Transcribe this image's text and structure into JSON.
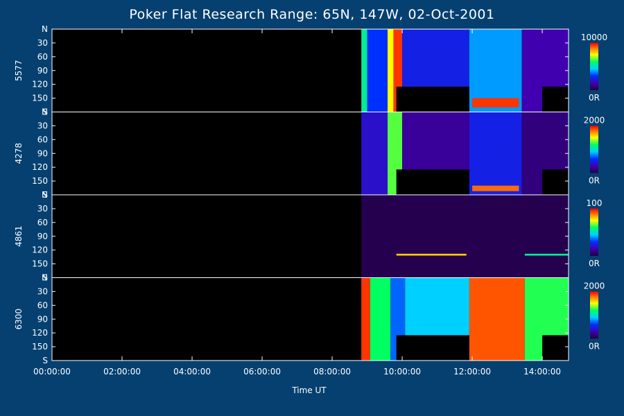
{
  "chart_data": {
    "type": "heatmap",
    "title": "Poker Flat Research Range: 65N, 147W, 02-Oct-2001",
    "xlabel": "Time UT",
    "xlim": [
      "00:00:00",
      "14:45:00"
    ],
    "x_ticks": [
      "00:00:00",
      "02:00:00",
      "04:00:00",
      "06:00:00",
      "08:00:00",
      "10:00:00",
      "12:00:00",
      "14:00:00"
    ],
    "y_ticks": [
      "N",
      "30",
      "60",
      "90",
      "120",
      "150",
      "S"
    ],
    "panels": [
      {
        "name": "5577",
        "colorbar": {
          "max_label": "10000",
          "min_label": "0R"
        },
        "segments": [
          {
            "start": "08:50",
            "end": "09:00",
            "intensity": 0.55
          },
          {
            "start": "09:00",
            "end": "09:35",
            "intensity": 0.3
          },
          {
            "start": "09:35",
            "end": "09:45",
            "intensity": 0.75
          },
          {
            "start": "09:45",
            "end": "10:00",
            "intensity": 0.95
          },
          {
            "start": "10:00",
            "end": "11:55",
            "intensity": 0.25
          },
          {
            "start": "11:55",
            "end": "13:25",
            "intensity": 0.4
          },
          {
            "start": "13:25",
            "end": "14:45",
            "intensity": 0.15
          }
        ],
        "missing": [
          {
            "start": "09:50",
            "end": "11:55",
            "from_deg": 125,
            "to_deg": 180
          },
          {
            "start": "14:00",
            "end": "14:45",
            "from_deg": 125,
            "to_deg": 180
          }
        ],
        "bright_bands": [
          {
            "start": "12:00",
            "end": "13:20",
            "from_deg": 150,
            "to_deg": 170,
            "intensity": 0.95
          }
        ]
      },
      {
        "name": "4278",
        "colorbar": {
          "max_label": "2000",
          "min_label": "0R"
        },
        "segments": [
          {
            "start": "08:50",
            "end": "09:35",
            "intensity": 0.2
          },
          {
            "start": "09:35",
            "end": "10:00",
            "intensity": 0.65
          },
          {
            "start": "10:00",
            "end": "11:55",
            "intensity": 0.12
          },
          {
            "start": "11:55",
            "end": "13:25",
            "intensity": 0.25
          },
          {
            "start": "13:25",
            "end": "14:45",
            "intensity": 0.08
          }
        ],
        "missing": [
          {
            "start": "09:50",
            "end": "11:55",
            "from_deg": 125,
            "to_deg": 180
          },
          {
            "start": "14:00",
            "end": "14:45",
            "from_deg": 125,
            "to_deg": 180
          }
        ],
        "bright_bands": [
          {
            "start": "12:00",
            "end": "13:20",
            "from_deg": 160,
            "to_deg": 172,
            "intensity": 0.9
          }
        ]
      },
      {
        "name": "4861",
        "colorbar": {
          "max_label": "100",
          "min_label": "0R"
        },
        "segments": [
          {
            "start": "08:50",
            "end": "14:45",
            "intensity": 0.02
          }
        ],
        "missing": [],
        "bright_bands": [
          {
            "start": "09:50",
            "end": "11:50",
            "from_deg": 128,
            "to_deg": 132,
            "intensity": 0.8
          },
          {
            "start": "13:30",
            "end": "14:45",
            "from_deg": 128,
            "to_deg": 132,
            "intensity": 0.55
          }
        ]
      },
      {
        "name": "6300",
        "colorbar": {
          "max_label": "2000",
          "min_label": "0R"
        },
        "segments": [
          {
            "start": "08:50",
            "end": "09:05",
            "intensity": 0.95
          },
          {
            "start": "09:05",
            "end": "09:40",
            "intensity": 0.6
          },
          {
            "start": "09:40",
            "end": "10:05",
            "intensity": 0.35
          },
          {
            "start": "10:05",
            "end": "11:55",
            "intensity": 0.45
          },
          {
            "start": "11:55",
            "end": "13:30",
            "intensity": 0.92
          },
          {
            "start": "13:30",
            "end": "14:45",
            "intensity": 0.62
          }
        ],
        "missing": [
          {
            "start": "09:50",
            "end": "11:55",
            "from_deg": 125,
            "to_deg": 180
          },
          {
            "start": "14:00",
            "end": "14:45",
            "from_deg": 125,
            "to_deg": 180
          }
        ],
        "bright_bands": []
      }
    ]
  }
}
